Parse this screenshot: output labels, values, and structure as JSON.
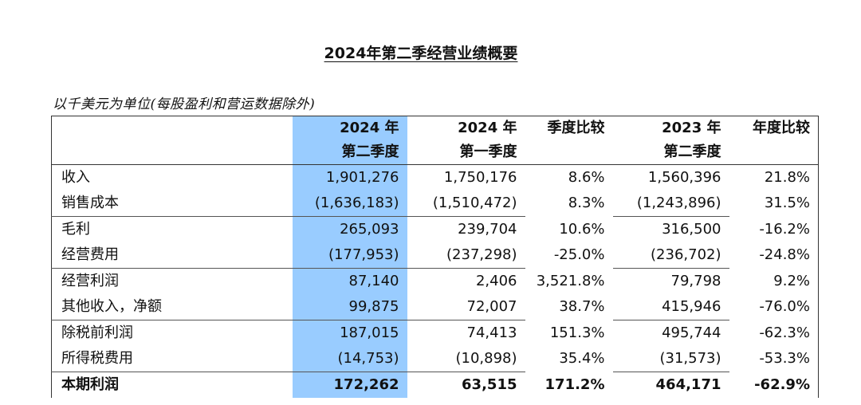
{
  "title": "2024年第二季经营业绩概要",
  "note": "以千美元为单位(每股盈利和营运数据除外)",
  "columns": [
    {
      "line1": "2024 年",
      "line2": "第二季度"
    },
    {
      "line1": "2024 年",
      "line2": "第一季度"
    },
    {
      "line1": "季度比较",
      "line2": ""
    },
    {
      "line1": "2023 年",
      "line2": "第二季度"
    },
    {
      "line1": "年度比较",
      "line2": ""
    }
  ],
  "rows": [
    {
      "label": "收入",
      "cells": [
        "1,901,276",
        "1,750,176",
        "8.6%",
        "1,560,396",
        "21.8%"
      ]
    },
    {
      "label": "销售成本",
      "cells": [
        "(1,636,183)",
        "(1,510,472)",
        "8.3%",
        "(1,243,896)",
        "31.5%"
      ]
    },
    {
      "label": "毛利",
      "cells": [
        "265,093",
        "239,704",
        "10.6%",
        "316,500",
        "-16.2%"
      ]
    },
    {
      "label": "经营费用",
      "cells": [
        "(177,953)",
        "(237,298)",
        "-25.0%",
        "(236,702)",
        "-24.8%"
      ]
    },
    {
      "label": "经营利润",
      "cells": [
        "87,140",
        "2,406",
        "3,521.8%",
        "79,798",
        "9.2%"
      ]
    },
    {
      "label": "其他收入，净额",
      "cells": [
        "99,875",
        "72,007",
        "38.7%",
        "415,946",
        "-76.0%"
      ]
    },
    {
      "label": "除税前利润",
      "cells": [
        "187,015",
        "74,413",
        "151.3%",
        "495,744",
        "-62.3%"
      ]
    },
    {
      "label": "所得税费用",
      "cells": [
        "(14,753)",
        "(10,898)",
        "35.4%",
        "(31,573)",
        "-53.3%"
      ]
    },
    {
      "label": "本期利润",
      "cells": [
        "172,262",
        "63,515",
        "171.2%",
        "464,171",
        "-62.9%"
      ]
    }
  ],
  "colors": {
    "highlight_column": "#99ccff"
  }
}
